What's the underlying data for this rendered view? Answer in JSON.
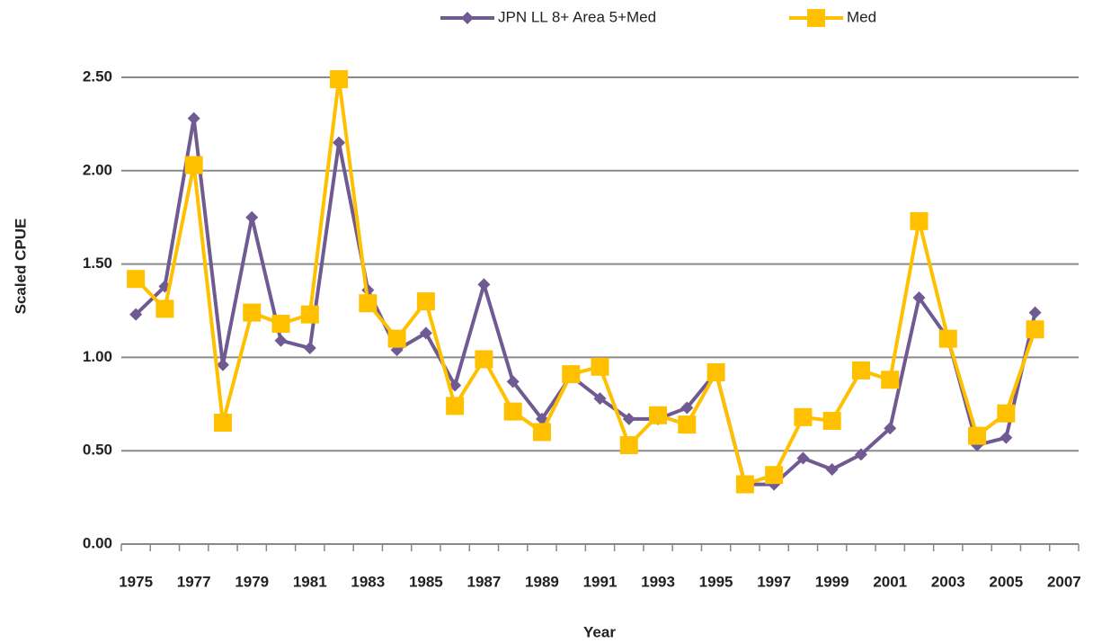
{
  "chart_data": {
    "type": "line",
    "y_label": "Scaled CPUE",
    "x_label": "Year",
    "categories": [
      "1975",
      null,
      "1977",
      null,
      "1979",
      null,
      "1981",
      null,
      "1983",
      null,
      "1985",
      null,
      "1987",
      null,
      "1989",
      null,
      "1991",
      null,
      "1993",
      null,
      "1995",
      null,
      "1997",
      null,
      "1999",
      null,
      "2001",
      null,
      "2003",
      null,
      "2005",
      null,
      "2007"
    ],
    "series": [
      {
        "name": "JPN LL 8+ Area 5+Med",
        "color": "#6f5a92",
        "marker": "diamond",
        "values": [
          1.23,
          1.38,
          2.28,
          0.96,
          1.75,
          1.09,
          1.05,
          2.15,
          1.36,
          1.04,
          1.13,
          0.85,
          1.39,
          0.87,
          0.67,
          0.9,
          0.78,
          0.67,
          0.67,
          0.73,
          0.92,
          0.32,
          0.32,
          0.46,
          0.4,
          0.48,
          0.62,
          1.32,
          1.1,
          0.53,
          0.57,
          1.24,
          null
        ]
      },
      {
        "name": "Med",
        "color": "#ffc000",
        "marker": "square",
        "values": [
          1.42,
          1.26,
          2.03,
          0.65,
          1.24,
          1.18,
          1.23,
          2.49,
          1.29,
          1.1,
          1.3,
          0.74,
          0.99,
          0.71,
          0.6,
          0.91,
          0.95,
          0.53,
          0.69,
          0.64,
          0.92,
          0.32,
          0.37,
          0.68,
          0.66,
          0.93,
          0.88,
          1.73,
          1.1,
          0.58,
          0.7,
          1.15,
          null
        ]
      }
    ],
    "ylim": [
      0,
      2.5
    ],
    "yticks": [
      {
        "value": 0,
        "label": "0.00"
      },
      {
        "value": 0.5,
        "label": "0.50"
      },
      {
        "value": 1,
        "label": "1.00"
      },
      {
        "value": 1.5,
        "label": "1.50"
      },
      {
        "value": 2,
        "label": "2.00"
      },
      {
        "value": 2.5,
        "label": "2.50"
      }
    ],
    "grid": true,
    "legend": "top"
  }
}
